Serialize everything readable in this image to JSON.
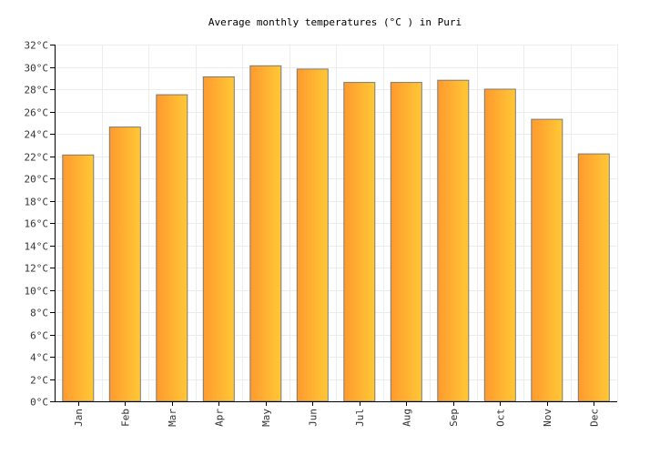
{
  "chart_data": {
    "type": "bar",
    "title": "Average monthly temperatures (°C ) in Puri",
    "xlabel": "",
    "ylabel": "",
    "categories": [
      "Jan",
      "Feb",
      "Mar",
      "Apr",
      "May",
      "Jun",
      "Jul",
      "Aug",
      "Sep",
      "Oct",
      "Nov",
      "Dec"
    ],
    "values": [
      22.1,
      24.6,
      27.5,
      29.1,
      30.1,
      29.8,
      28.6,
      28.6,
      28.8,
      28.0,
      25.3,
      22.2
    ],
    "ylim": [
      0,
      32
    ],
    "ytick_labels": [
      "0°C",
      "2°C",
      "4°C",
      "6°C",
      "8°C",
      "10°C",
      "12°C",
      "14°C",
      "16°C",
      "18°C",
      "20°C",
      "22°C",
      "24°C",
      "26°C",
      "28°C",
      "30°C",
      "32°C"
    ],
    "grid": true,
    "legend": "none",
    "colors": {
      "bar_start": "#ff9a2e",
      "bar_end": "#ffc836",
      "bar_stroke": "#7a7a7a",
      "grid": "#ececec",
      "axis": "#000000"
    }
  }
}
